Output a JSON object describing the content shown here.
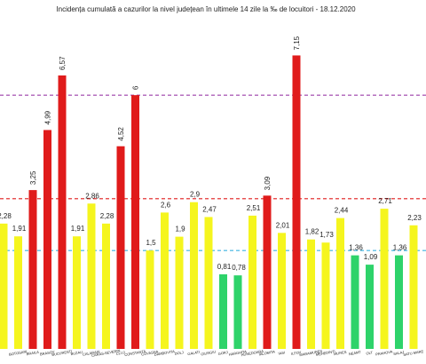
{
  "chart_data": {
    "type": "bar",
    "title": "Incidența cumulată a cazurilor la nivel județean în ultimele 14 zile   la ‰ de locuitori  - 18.12.2020",
    "categories": [
      null,
      "BOTOSANI",
      "BRAILA",
      "BRASOV",
      "BUCURESTI",
      "BUZAU",
      "CALARASI",
      "CARAS-SEVERIN",
      "CLUJ",
      "CONSTANTA",
      "COVASNA",
      "DAMBOVITA",
      "DOLJ",
      "GALATI",
      "GIURGIU",
      "GORJ",
      "HARGHITA",
      "HUNEDOARA",
      "IALOMITA",
      "IASI",
      "ILFOV",
      "MARAMURES",
      "MEHEDINTI",
      "MURES",
      "NEAMT",
      "OLT",
      "PRAHOVA",
      "SALAJ",
      "SATU MARE"
    ],
    "values": [
      2.28,
      1.91,
      3.25,
      4.99,
      6.57,
      1.91,
      2.86,
      2.28,
      4.52,
      6,
      1.5,
      2.6,
      1.9,
      2.9,
      2.47,
      0.81,
      0.78,
      2.51,
      3.09,
      2.01,
      7.15,
      1.82,
      1.73,
      2.44,
      1.36,
      1.09,
      2.71,
      1.36,
      2.23
    ],
    "value_labels": [
      "2,28",
      "1,91",
      "3,25",
      "4,99",
      "6,57",
      "1,91",
      "2,86",
      "2,28",
      "4,52",
      "6",
      "1,5",
      "2,6",
      "1,9",
      "2,9",
      "2,47",
      "0,81",
      "0,78",
      "2,51",
      "3,09",
      "2,01",
      "7,15",
      "1,82",
      "1,73",
      "2,44",
      "1,36",
      "1,09",
      "2,71",
      "1,36",
      "2,23"
    ],
    "colors": [
      "#f5f51e",
      "#f5f51e",
      "#e01b1b",
      "#e01b1b",
      "#e01b1b",
      "#f5f51e",
      "#f5f51e",
      "#f5f51e",
      "#e01b1b",
      "#e01b1b",
      "#f5f51e",
      "#f5f51e",
      "#f5f51e",
      "#f5f51e",
      "#f5f51e",
      "#2ed36a",
      "#2ed36a",
      "#f5f51e",
      "#e01b1b",
      "#f5f51e",
      "#e01b1b",
      "#f5f51e",
      "#f5f51e",
      "#f5f51e",
      "#2ed36a",
      "#2ed36a",
      "#f5f51e",
      "#2ed36a",
      "#f5f51e"
    ],
    "reference_lines": [
      {
        "value": 6,
        "color": "#9b3fa8"
      },
      {
        "value": 3,
        "color": "#e01b1b"
      },
      {
        "value": 1.5,
        "color": "#3cb4e0"
      }
    ],
    "ylim": [
      -1.35,
      8.19
    ]
  }
}
